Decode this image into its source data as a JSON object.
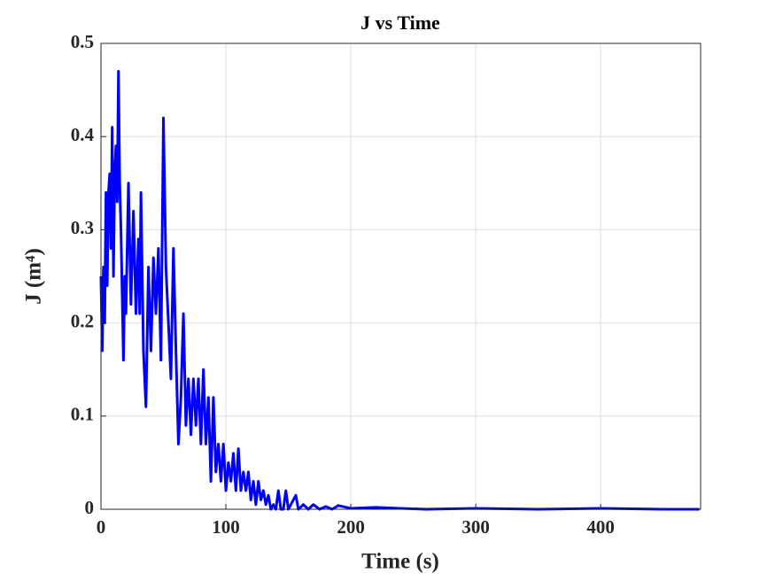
{
  "chart_data": {
    "type": "line",
    "title": "J vs Time",
    "x_label": "Time (s)",
    "y_label": "J (m⁴)",
    "x": [
      0,
      1,
      2,
      3,
      4,
      5,
      6,
      7,
      8,
      9,
      10,
      11,
      12,
      13,
      14,
      15,
      16,
      18,
      19,
      20,
      22,
      24,
      26,
      28,
      30,
      31,
      32,
      34,
      36,
      38,
      40,
      42,
      44,
      46,
      48,
      50,
      52,
      54,
      56,
      58,
      60,
      62,
      64,
      66,
      68,
      70,
      72,
      74,
      76,
      78,
      80,
      82,
      84,
      86,
      88,
      90,
      92,
      94,
      96,
      98,
      100,
      102,
      104,
      106,
      108,
      110,
      112,
      114,
      116,
      118,
      120,
      122,
      124,
      126,
      128,
      130,
      132,
      134,
      136,
      138,
      140,
      142,
      144,
      146,
      148,
      150,
      152,
      156,
      158,
      162,
      166,
      170,
      175,
      180,
      185,
      190,
      200,
      220,
      240,
      260,
      300,
      350,
      400,
      450,
      479
    ],
    "series": [
      {
        "name": "J",
        "color": "#0000ff",
        "values": [
          0.25,
          0.17,
          0.26,
          0.2,
          0.34,
          0.24,
          0.34,
          0.36,
          0.28,
          0.41,
          0.25,
          0.36,
          0.39,
          0.33,
          0.47,
          0.35,
          0.3,
          0.16,
          0.25,
          0.21,
          0.35,
          0.22,
          0.32,
          0.21,
          0.29,
          0.21,
          0.34,
          0.17,
          0.11,
          0.26,
          0.17,
          0.27,
          0.21,
          0.28,
          0.16,
          0.42,
          0.26,
          0.2,
          0.14,
          0.28,
          0.17,
          0.07,
          0.12,
          0.21,
          0.09,
          0.14,
          0.08,
          0.14,
          0.09,
          0.14,
          0.07,
          0.15,
          0.07,
          0.12,
          0.03,
          0.12,
          0.04,
          0.07,
          0.03,
          0.07,
          0.02,
          0.05,
          0.03,
          0.06,
          0.02,
          0.065,
          0.02,
          0.04,
          0.02,
          0.04,
          0.01,
          0.03,
          0.005,
          0.03,
          0.01,
          0.02,
          0.005,
          0.015,
          0,
          0.005,
          0,
          0.02,
          0,
          0,
          0.02,
          0,
          0.005,
          0.015,
          0,
          0.005,
          0,
          0.005,
          0,
          0.003,
          0,
          0.004,
          0.001,
          0.002,
          0.001,
          0,
          0.001,
          0,
          0.001,
          0,
          0
        ]
      }
    ],
    "xlim": [
      0,
      480
    ],
    "ylim": [
      0,
      0.5
    ],
    "xticks": [
      0,
      100,
      200,
      300,
      400
    ],
    "yticks": [
      0,
      0.1,
      0.2,
      0.3,
      0.4,
      0.5
    ],
    "grid": true
  }
}
